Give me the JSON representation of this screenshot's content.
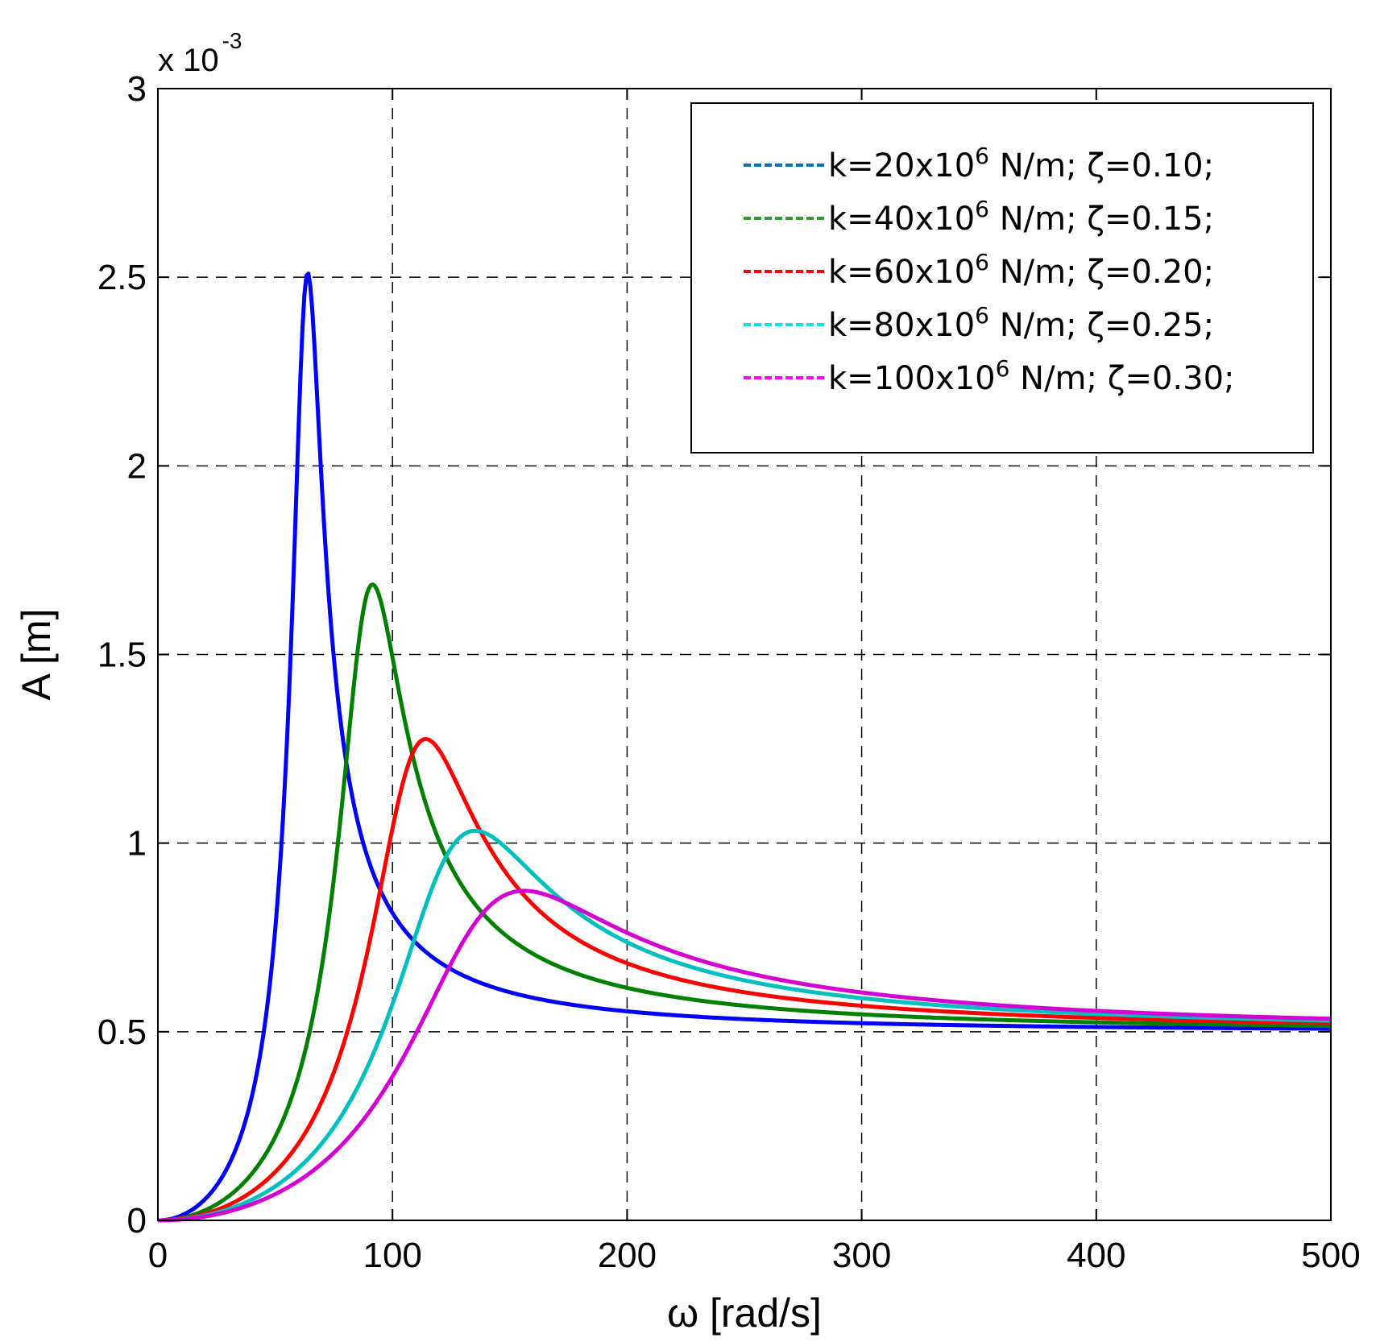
{
  "chart_data": {
    "type": "line",
    "title": "",
    "xlabel": "ω [rad/s]",
    "ylabel": "A [m]",
    "xlim": [
      0,
      500
    ],
    "ylim": [
      0,
      0.003
    ],
    "y_scale_label": {
      "base": "x 10",
      "exponent": "-3"
    },
    "x_ticks": [
      0,
      100,
      200,
      300,
      400,
      500
    ],
    "x_tick_labels": [
      "0",
      "100",
      "200",
      "300",
      "400",
      "500"
    ],
    "y_ticks": [
      0,
      0.0005,
      0.001,
      0.0015,
      0.002,
      0.0025,
      0.003
    ],
    "y_tick_labels": [
      "0",
      "0.5",
      "1",
      "1.5",
      "2",
      "2.5",
      "3"
    ],
    "grid": true,
    "legend_position": "top-right",
    "static_amplitude": 0.0005,
    "series": [
      {
        "name": "k=20x10⁶ N/m; ζ=0.10;",
        "label_pre": "k=20x10",
        "label_exp": "6",
        "label_post": " N/m; ζ=0.10;",
        "color": "#0000ff",
        "legend_color": "#0070c0",
        "natural_frequency": 63.2,
        "damping_ratio": 0.1,
        "peak_omega": 63,
        "peak_amplitude": 0.0025
      },
      {
        "name": "k=40x10⁶ N/m; ζ=0.15;",
        "label_pre": "k=40x10",
        "label_exp": "6",
        "label_post": " N/m; ζ=0.15;",
        "color": "#008000",
        "legend_color": "#2ca02c",
        "natural_frequency": 89.4,
        "damping_ratio": 0.15,
        "peak_omega": 91,
        "peak_amplitude": 0.00169
      },
      {
        "name": "k=60x10⁶ N/m; ζ=0.20;",
        "label_pre": "k=60x10",
        "label_exp": "6",
        "label_post": " N/m; ζ=0.20;",
        "color": "#ff0000",
        "legend_color": "#ff0000",
        "natural_frequency": 109.5,
        "damping_ratio": 0.2,
        "peak_omega": 113,
        "peak_amplitude": 0.00127
      },
      {
        "name": "k=80x10⁶ N/m; ζ=0.25;",
        "label_pre": "k=80x10",
        "label_exp": "6",
        "label_post": " N/m; ζ=0.25;",
        "color": "#00bfbf",
        "legend_color": "#00e5e5",
        "natural_frequency": 126.5,
        "damping_ratio": 0.25,
        "peak_omega": 132,
        "peak_amplitude": 0.00103
      },
      {
        "name": "k=100x10⁶ N/m; ζ=0.30;",
        "label_pre": "k=100x10",
        "label_exp": "6",
        "label_post": " N/m; ζ=0.30;",
        "color": "#d400d4",
        "legend_color": "#ff00ff",
        "natural_frequency": 141.4,
        "damping_ratio": 0.3,
        "peak_omega": 151,
        "peak_amplitude": 0.00087
      }
    ]
  }
}
